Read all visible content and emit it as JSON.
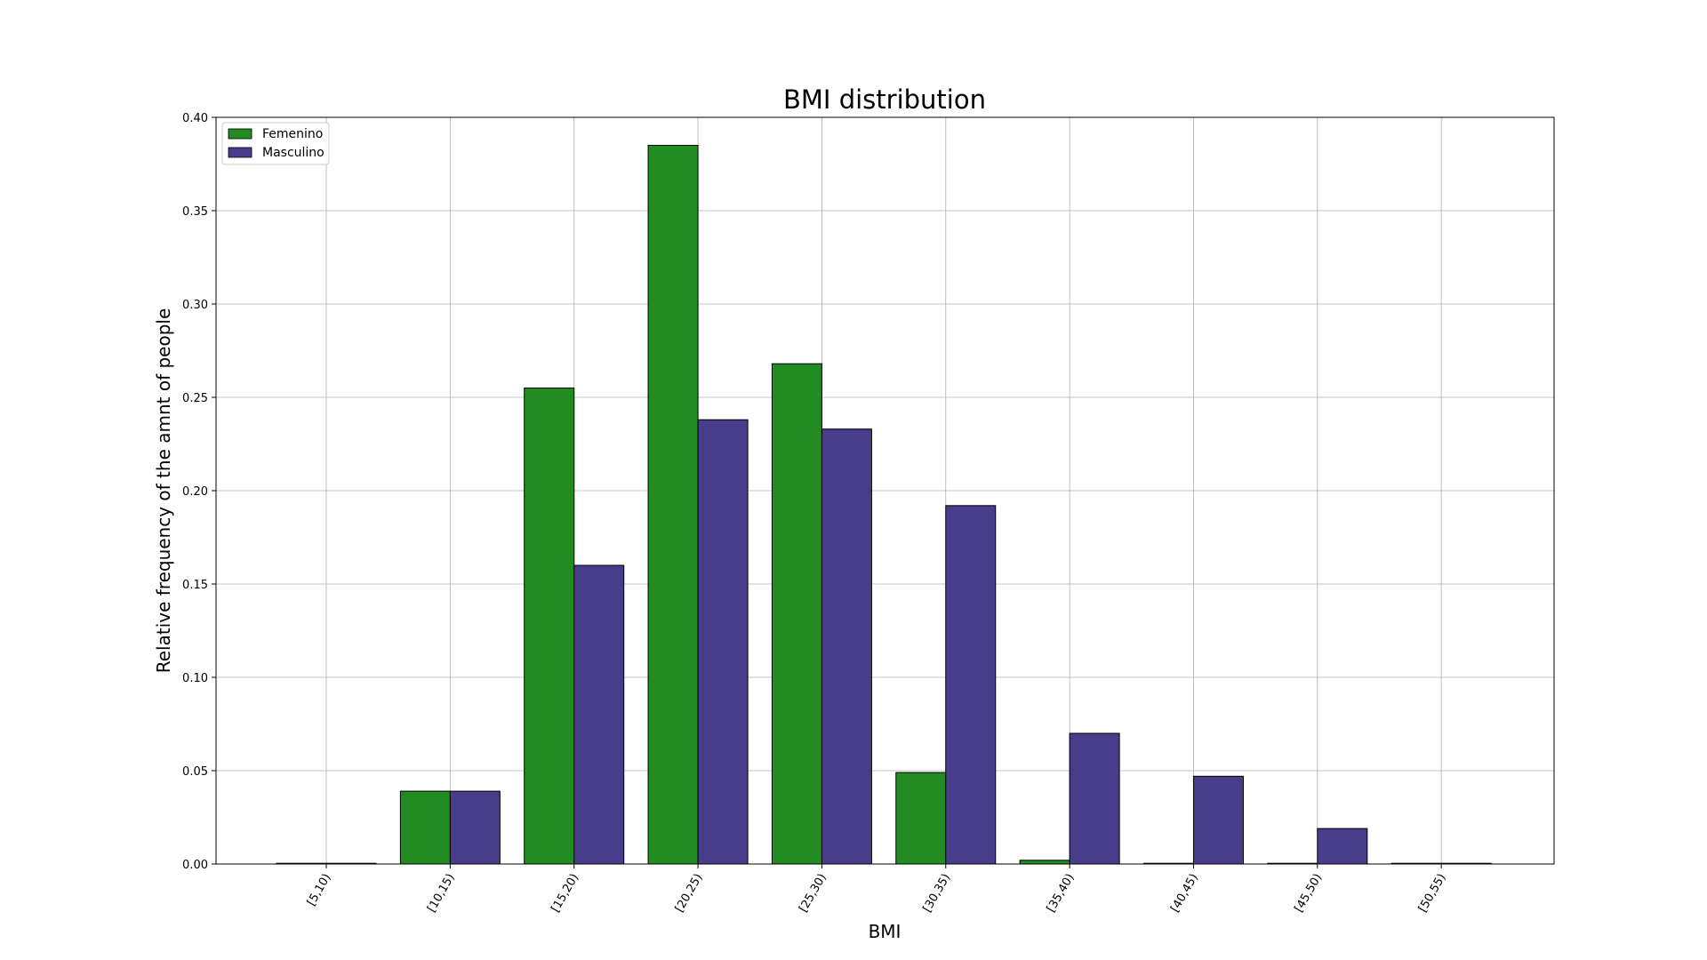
{
  "chart_data": {
    "type": "bar",
    "title": "BMI distribution",
    "xlabel": "BMI",
    "ylabel": "Relative frequency of the amnt of people",
    "categories": [
      "[5,10)",
      "[10,15)",
      "[15,20)",
      "[20,25)",
      "[25,30)",
      "[30,35)",
      "[35,40)",
      "[40,45)",
      "[45,50)",
      "[50,55)"
    ],
    "series": [
      {
        "name": "Femenino",
        "color": "#228b22",
        "values": [
          0.0,
          0.039,
          0.255,
          0.385,
          0.268,
          0.049,
          0.002,
          0.0,
          0.0,
          0.0
        ]
      },
      {
        "name": "Masculino",
        "color": "#483d8b",
        "values": [
          0.0,
          0.039,
          0.16,
          0.238,
          0.233,
          0.192,
          0.07,
          0.047,
          0.019,
          0.0
        ]
      }
    ],
    "ylim": [
      0,
      0.4
    ],
    "yticks": [
      "0.00",
      "0.05",
      "0.10",
      "0.15",
      "0.20",
      "0.25",
      "0.30",
      "0.35",
      "0.40"
    ],
    "grid": true,
    "legend_position": "top-left"
  }
}
